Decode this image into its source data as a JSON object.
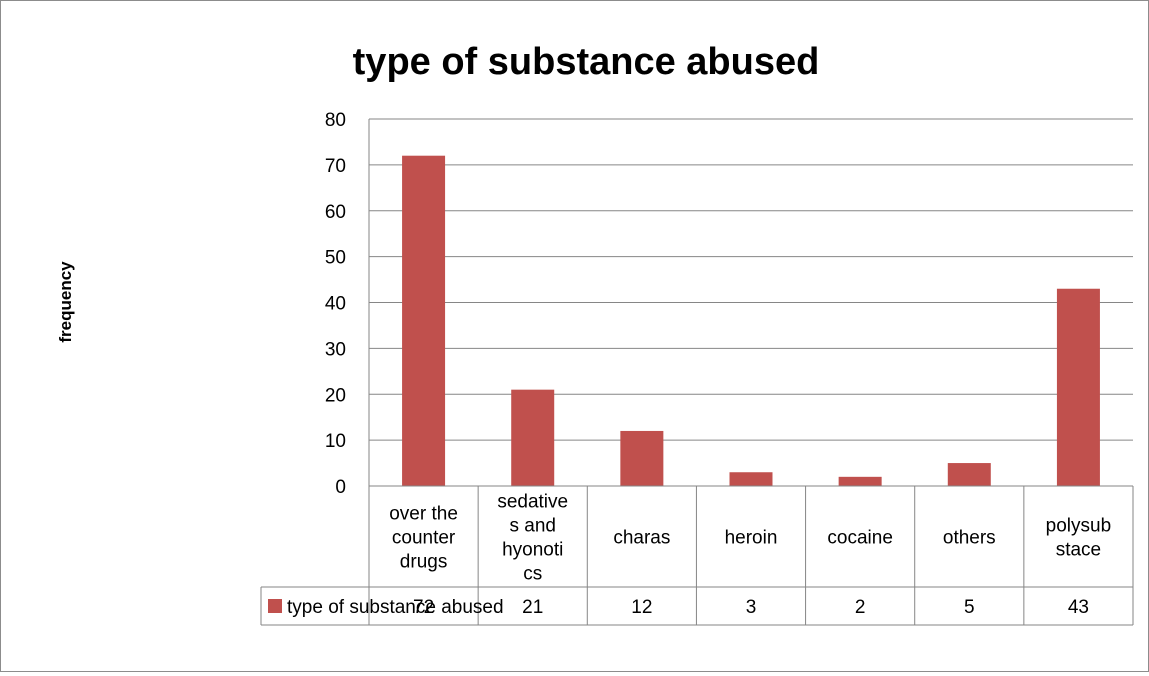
{
  "chart_data": {
    "type": "bar",
    "title": "type of substance abused",
    "ylabel": "frequency",
    "xlabel": "",
    "ylim": [
      0,
      80
    ],
    "yticks": [
      0,
      10,
      20,
      30,
      40,
      50,
      60,
      70,
      80
    ],
    "categories": [
      [
        "over the",
        "counter",
        "drugs"
      ],
      [
        "sedative",
        "s and",
        "hyonoti",
        "cs"
      ],
      [
        "charas"
      ],
      [
        "heroin"
      ],
      [
        "cocaine"
      ],
      [
        "others"
      ],
      [
        "polysub",
        "stace"
      ]
    ],
    "series": [
      {
        "name": "type of substance abused",
        "values": [
          72,
          21,
          12,
          3,
          2,
          5,
          43
        ],
        "color": "#c0504d"
      }
    ],
    "grid": true,
    "legend": "data-table-left",
    "data_table": true
  }
}
